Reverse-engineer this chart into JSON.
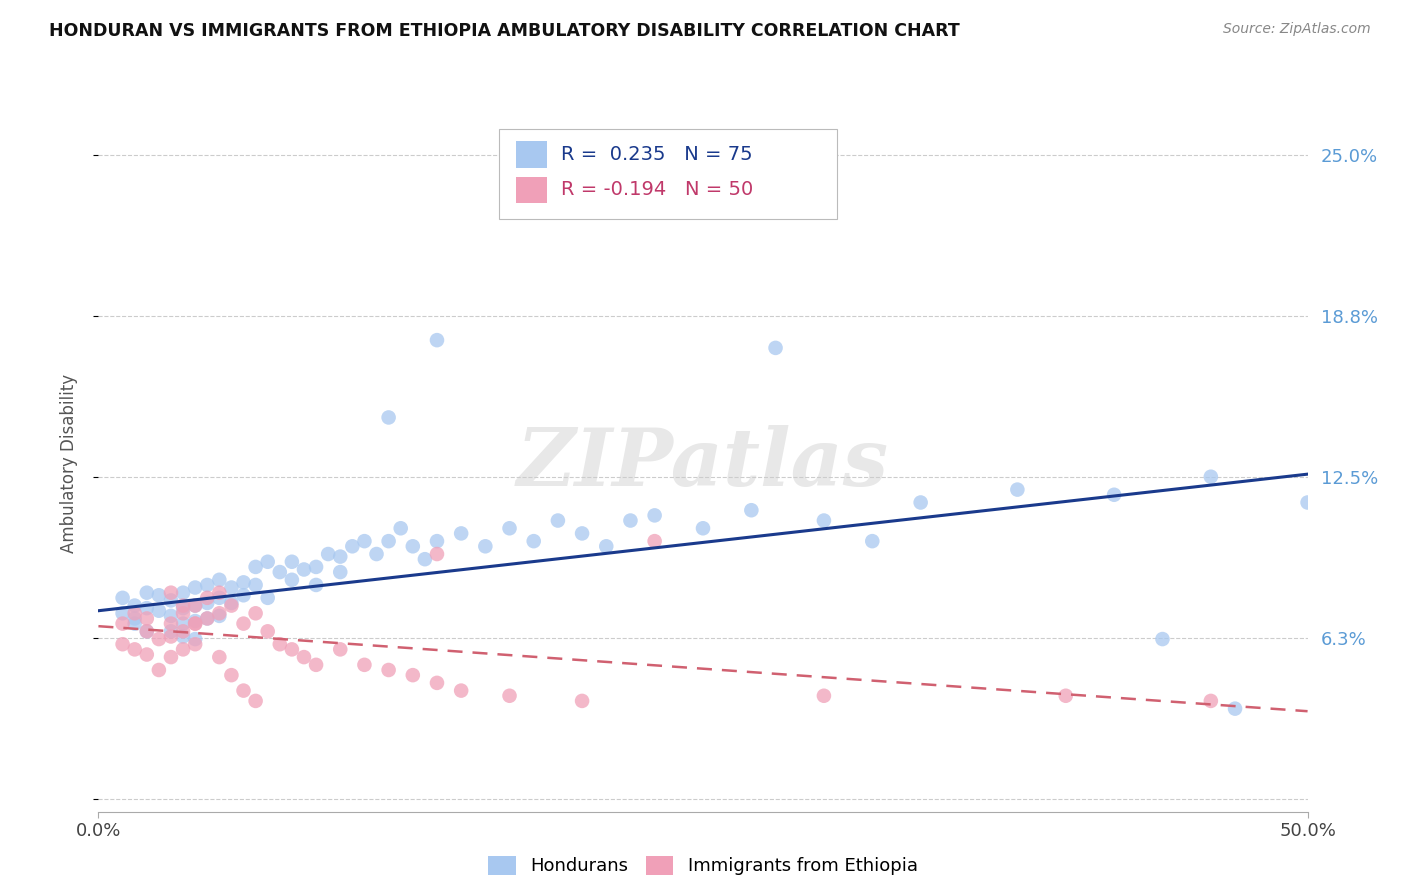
{
  "title": "HONDURAN VS IMMIGRANTS FROM ETHIOPIA AMBULATORY DISABILITY CORRELATION CHART",
  "source": "Source: ZipAtlas.com",
  "ylabel": "Ambulatory Disability",
  "yticks": [
    0.0,
    0.0625,
    0.125,
    0.1875,
    0.25
  ],
  "ytick_labels": [
    "",
    "6.3%",
    "12.5%",
    "18.8%",
    "25.0%"
  ],
  "xlim": [
    0.0,
    0.5
  ],
  "ylim": [
    -0.005,
    0.265
  ],
  "blue_color": "#A8C8F0",
  "pink_color": "#F0A0B8",
  "trend_blue_color": "#1A3A8C",
  "trend_pink_color": "#D06070",
  "watermark": "ZIPatlas",
  "blue_line_x": [
    0.0,
    0.5
  ],
  "blue_line_y": [
    0.073,
    0.126
  ],
  "pink_line_x": [
    0.0,
    0.5
  ],
  "pink_line_y": [
    0.067,
    0.034
  ],
  "blue_scatter_x": [
    0.01,
    0.01,
    0.015,
    0.015,
    0.015,
    0.02,
    0.02,
    0.02,
    0.025,
    0.025,
    0.03,
    0.03,
    0.03,
    0.035,
    0.035,
    0.035,
    0.035,
    0.04,
    0.04,
    0.04,
    0.04,
    0.045,
    0.045,
    0.045,
    0.05,
    0.05,
    0.05,
    0.055,
    0.055,
    0.06,
    0.06,
    0.065,
    0.065,
    0.07,
    0.07,
    0.075,
    0.08,
    0.08,
    0.085,
    0.09,
    0.09,
    0.095,
    0.1,
    0.1,
    0.105,
    0.11,
    0.115,
    0.12,
    0.125,
    0.13,
    0.135,
    0.14,
    0.15,
    0.16,
    0.17,
    0.18,
    0.19,
    0.2,
    0.21,
    0.22,
    0.23,
    0.25,
    0.27,
    0.3,
    0.34,
    0.38,
    0.42,
    0.46,
    0.5,
    0.12,
    0.14,
    0.28,
    0.32,
    0.44,
    0.47
  ],
  "blue_scatter_y": [
    0.072,
    0.078,
    0.07,
    0.075,
    0.068,
    0.074,
    0.08,
    0.065,
    0.073,
    0.079,
    0.071,
    0.077,
    0.065,
    0.074,
    0.08,
    0.068,
    0.063,
    0.075,
    0.082,
    0.069,
    0.062,
    0.076,
    0.083,
    0.07,
    0.078,
    0.085,
    0.071,
    0.082,
    0.076,
    0.084,
    0.079,
    0.09,
    0.083,
    0.092,
    0.078,
    0.088,
    0.085,
    0.092,
    0.089,
    0.09,
    0.083,
    0.095,
    0.088,
    0.094,
    0.098,
    0.1,
    0.095,
    0.1,
    0.105,
    0.098,
    0.093,
    0.1,
    0.103,
    0.098,
    0.105,
    0.1,
    0.108,
    0.103,
    0.098,
    0.108,
    0.11,
    0.105,
    0.112,
    0.108,
    0.115,
    0.12,
    0.118,
    0.125,
    0.115,
    0.148,
    0.178,
    0.175,
    0.1,
    0.062,
    0.035
  ],
  "pink_scatter_x": [
    0.01,
    0.01,
    0.015,
    0.015,
    0.02,
    0.02,
    0.02,
    0.025,
    0.025,
    0.03,
    0.03,
    0.03,
    0.035,
    0.035,
    0.035,
    0.04,
    0.04,
    0.04,
    0.045,
    0.045,
    0.05,
    0.05,
    0.055,
    0.06,
    0.065,
    0.07,
    0.075,
    0.08,
    0.085,
    0.09,
    0.1,
    0.11,
    0.12,
    0.13,
    0.14,
    0.15,
    0.17,
    0.2,
    0.23,
    0.03,
    0.035,
    0.04,
    0.05,
    0.055,
    0.06,
    0.065,
    0.14,
    0.3,
    0.4,
    0.46
  ],
  "pink_scatter_y": [
    0.068,
    0.06,
    0.072,
    0.058,
    0.065,
    0.07,
    0.056,
    0.062,
    0.05,
    0.068,
    0.063,
    0.055,
    0.072,
    0.065,
    0.058,
    0.075,
    0.068,
    0.06,
    0.078,
    0.07,
    0.08,
    0.072,
    0.075,
    0.068,
    0.072,
    0.065,
    0.06,
    0.058,
    0.055,
    0.052,
    0.058,
    0.052,
    0.05,
    0.048,
    0.045,
    0.042,
    0.04,
    0.038,
    0.1,
    0.08,
    0.075,
    0.068,
    0.055,
    0.048,
    0.042,
    0.038,
    0.095,
    0.04,
    0.04,
    0.038
  ]
}
